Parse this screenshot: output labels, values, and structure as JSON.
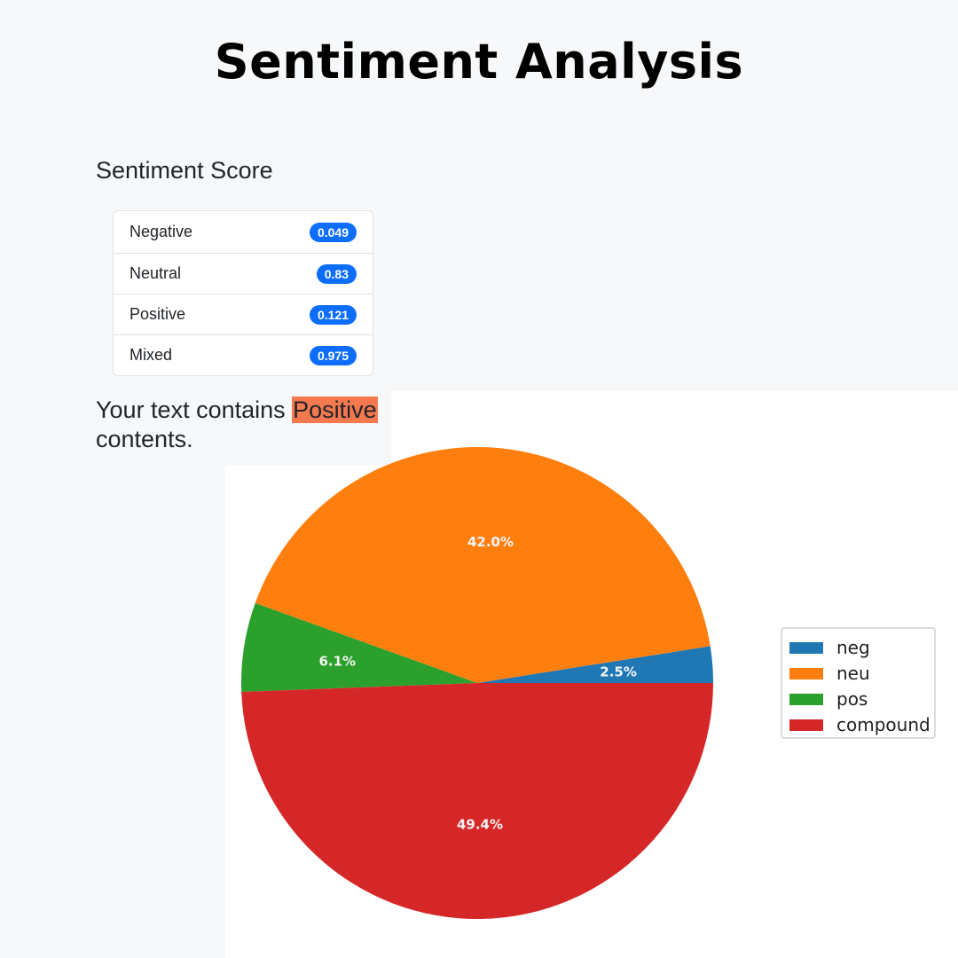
{
  "page": {
    "title": "Sentiment Analysis"
  },
  "scores": {
    "heading": "Sentiment Score",
    "items": [
      {
        "label": "Negative",
        "value": "0.049"
      },
      {
        "label": "Neutral",
        "value": "0.83"
      },
      {
        "label": "Positive",
        "value": "0.121"
      },
      {
        "label": "Mixed",
        "value": "0.975"
      }
    ],
    "badge_color": "#0d6efd"
  },
  "summary": {
    "prefix": "Your text contains",
    "highlight": "Positive",
    "suffix": "contents.",
    "highlight_color": "#f5794f"
  },
  "chart_data": {
    "type": "pie",
    "title": "",
    "categories": [
      "neg",
      "neu",
      "pos",
      "compound"
    ],
    "values": [
      2.5,
      42.0,
      6.1,
      49.4
    ],
    "labels": [
      "2.5%",
      "42.0%",
      "6.1%",
      "49.4%"
    ],
    "colors": [
      "#1f77b4",
      "#ff7f0e",
      "#2ca02c",
      "#d62728"
    ],
    "start_angle_deg": 0,
    "direction": "counterclockwise",
    "legend": {
      "position": "right",
      "entries": [
        "neg",
        "neu",
        "pos",
        "compound"
      ]
    }
  }
}
